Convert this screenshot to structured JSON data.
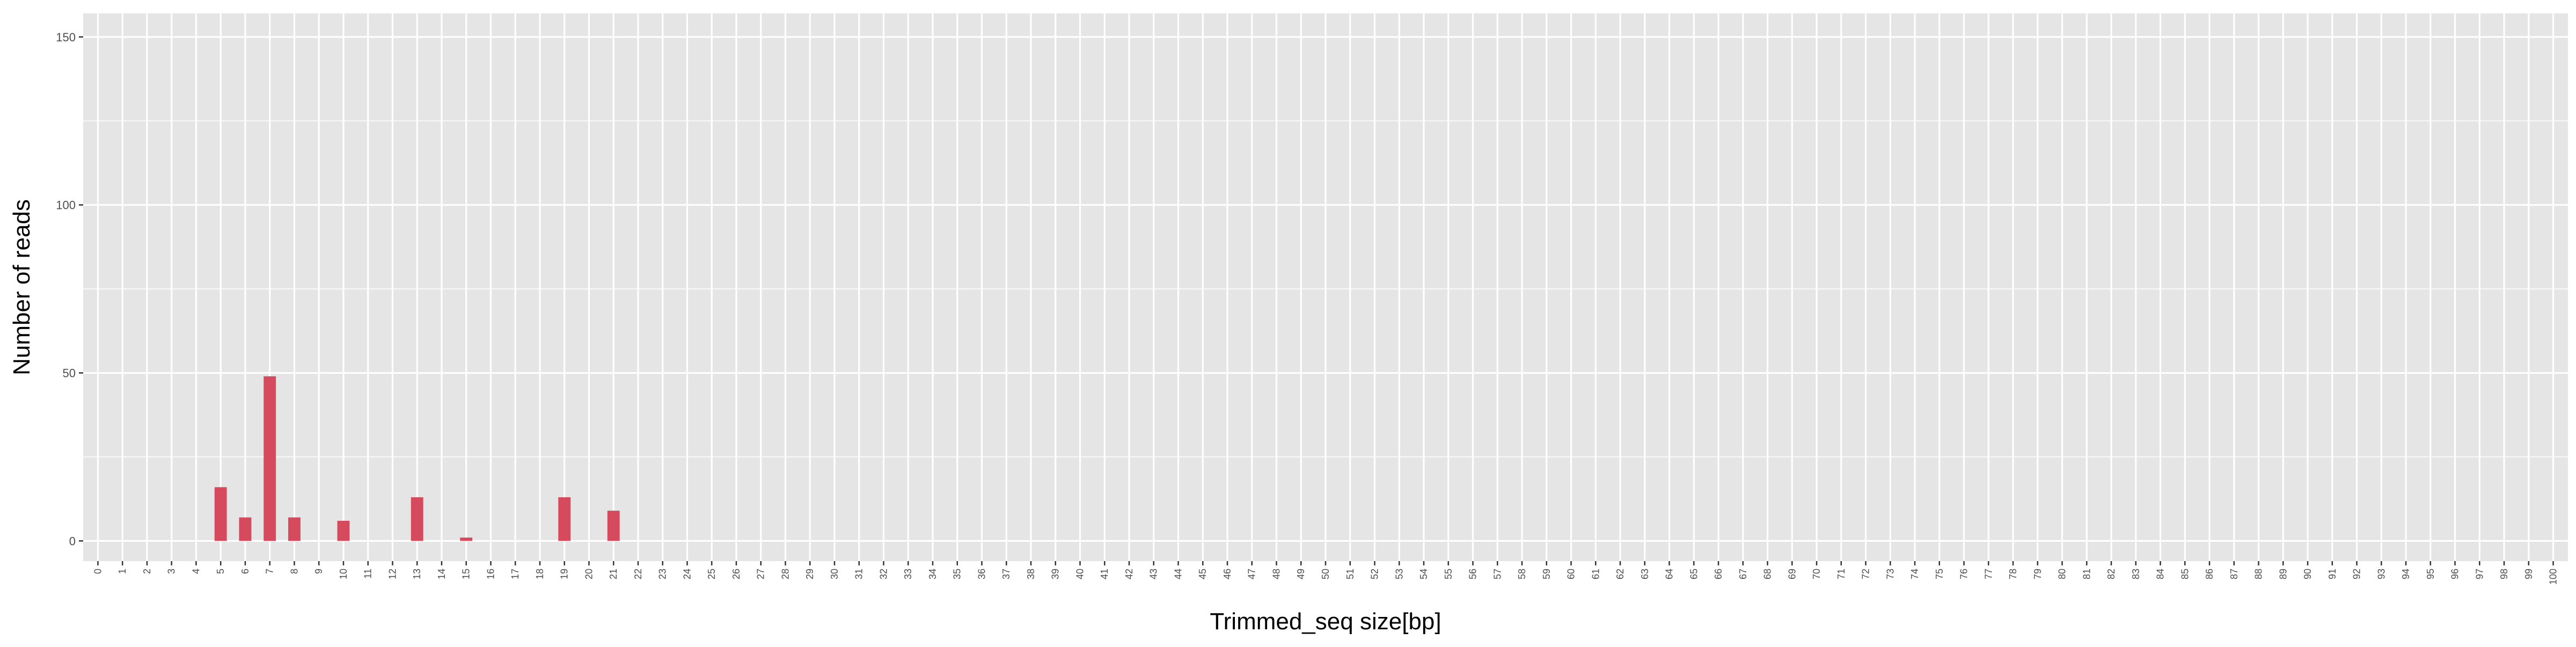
{
  "chart_data": {
    "type": "bar",
    "title": "",
    "xlabel": "Trimmed_seq size[bp]",
    "ylabel": "Number of reads",
    "x": [
      0,
      1,
      2,
      3,
      4,
      5,
      6,
      7,
      8,
      9,
      10,
      11,
      12,
      13,
      14,
      15,
      16,
      17,
      18,
      19,
      20,
      21,
      22,
      23,
      24,
      25,
      26,
      27,
      28,
      29,
      30,
      31,
      32,
      33,
      34,
      35,
      36,
      37,
      38,
      39,
      40,
      41,
      42,
      43,
      44,
      45,
      46,
      47,
      48,
      49,
      50,
      51,
      52,
      53,
      54,
      55,
      56,
      57,
      58,
      59,
      60,
      61,
      62,
      63,
      64,
      65,
      66,
      67,
      68,
      69,
      70,
      71,
      72,
      73,
      74,
      75,
      76,
      77,
      78,
      79,
      80,
      81,
      82,
      83,
      84,
      85,
      86,
      87,
      88,
      89,
      90,
      91,
      92,
      93,
      94,
      95,
      96,
      97,
      98,
      99,
      100
    ],
    "values": [
      0,
      0,
      0,
      0,
      0,
      16,
      7,
      49,
      7,
      0,
      6,
      0,
      0,
      13,
      0,
      1,
      0,
      0,
      0,
      13,
      0,
      9,
      0,
      0,
      0,
      0,
      0,
      0,
      0,
      0,
      0,
      0,
      0,
      0,
      0,
      0,
      0,
      0,
      0,
      0,
      0,
      0,
      0,
      0,
      0,
      0,
      0,
      0,
      0,
      0,
      0,
      0,
      0,
      0,
      0,
      0,
      0,
      0,
      0,
      0,
      0,
      0,
      0,
      0,
      0,
      0,
      0,
      0,
      0,
      0,
      0,
      0,
      0,
      0,
      0,
      0,
      0,
      0,
      0,
      0,
      0,
      0,
      0,
      0,
      0,
      0,
      0,
      0,
      0,
      0,
      0,
      0,
      0,
      0,
      0,
      0,
      0,
      0,
      0,
      0,
      0
    ],
    "y_ticks": [
      0,
      50,
      100,
      150
    ],
    "ylim": [
      -6,
      157
    ],
    "xlim": [
      -0.6,
      100.6
    ],
    "grid": true,
    "bar_color": "#d64a5e",
    "panel_color": "#e5e5e5",
    "grid_color": "#ffffff"
  }
}
